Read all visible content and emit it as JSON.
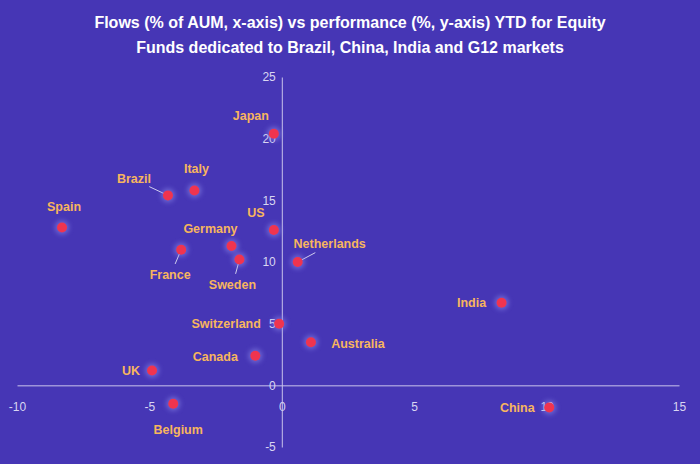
{
  "chart_data": {
    "type": "scatter",
    "title": "Flows (% of AUM, x-axis) vs performance (%, y-axis) YTD for Equity Funds dedicated to Brazil, China, India and G12 markets",
    "labels": [
      "Japan",
      "Brazil",
      "Italy",
      "Spain",
      "Germany",
      "US",
      "France",
      "Sweden",
      "Netherlands",
      "India",
      "Switzerland",
      "Australia",
      "Canada",
      "UK",
      "Belgium",
      "China"
    ],
    "x": [
      -0.3,
      -4.3,
      -3.3,
      -8.3,
      -1.9,
      -0.3,
      -3.8,
      -1.6,
      0.6,
      8.3,
      -0.1,
      1.1,
      -1.0,
      -4.9,
      -4.1,
      10.1
    ],
    "values": [
      20.4,
      15.4,
      15.8,
      12.8,
      11.3,
      12.6,
      11.0,
      10.2,
      10.0,
      6.7,
      5.0,
      3.5,
      2.4,
      1.2,
      -1.5,
      -1.8
    ],
    "color": "#f0344f",
    "xlim": [
      -10,
      15
    ],
    "xticks": [
      -10,
      -5,
      0,
      5,
      10,
      15
    ],
    "ylim": [
      -5,
      25
    ],
    "yticks": [
      -5,
      0,
      5,
      10,
      15,
      20,
      25
    ]
  }
}
